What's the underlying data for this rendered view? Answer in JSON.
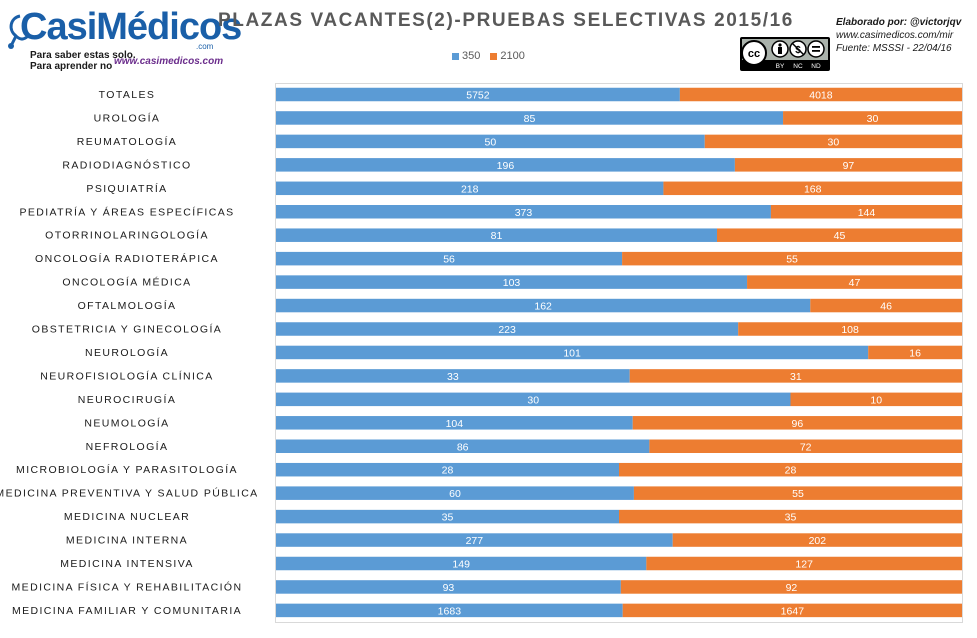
{
  "logo": {
    "word": "CasiMédicos",
    "com": ".com",
    "tagline1": "Para saber estas solo.",
    "tagline2": "Para aprender no",
    "url": "www.casimedicos.com"
  },
  "credits": {
    "line1": "Elaborado por: @victorjqv",
    "line2": "www.casimedicos.com/mir",
    "line3": "Fuente: MSSSI - 22/04/16"
  },
  "license": {
    "by": "BY",
    "nc": "NC",
    "nd": "ND"
  },
  "colors": {
    "series1": "#5b9bd5",
    "series2": "#ed7d31"
  },
  "chart_data": {
    "type": "bar",
    "orientation": "horizontal",
    "stacking": "percent",
    "title": "PLAZAS VACANTES(2)-PRUEBAS SELECTIVAS 2015/16",
    "legend_position": "top",
    "grid": false,
    "categories": [
      "TOTALES",
      "UROLOGÍA",
      "REUMATOLOGÍA",
      "RADIODIAGNÓSTICO",
      "PSIQUIATRÍA",
      "PEDIATRÍA Y ÁREAS ESPECÍFICAS",
      "OTORRINOLARINGOLOGÍA",
      "ONCOLOGÍA RADIOTERÁPICA",
      "ONCOLOGÍA MÉDICA",
      "OFTALMOLOGÍA",
      "OBSTETRICIA Y GINECOLOGÍA",
      "NEUROLOGÍA",
      "NEUROFISIOLOGÍA CLÍNICA",
      "NEUROCIRUGÍA",
      "NEUMOLOGÍA",
      "NEFROLOGÍA",
      "MICROBIOLOGÍA Y PARASITOLOGÍA",
      "MEDICINA PREVENTIVA Y SALUD PÚBLICA",
      "MEDICINA NUCLEAR",
      "MEDICINA INTERNA",
      "MEDICINA INTENSIVA",
      "MEDICINA FÍSICA Y REHABILITACIÓN",
      "MEDICINA FAMILIAR Y COMUNITARIA"
    ],
    "series": [
      {
        "name": "350",
        "color": "#5b9bd5",
        "values": [
          5752,
          85,
          50,
          196,
          218,
          373,
          81,
          56,
          103,
          162,
          223,
          101,
          33,
          30,
          104,
          86,
          28,
          60,
          35,
          277,
          149,
          93,
          1683
        ]
      },
      {
        "name": "2100",
        "color": "#ed7d31",
        "values": [
          4018,
          30,
          30,
          97,
          168,
          144,
          45,
          55,
          47,
          46,
          108,
          16,
          31,
          10,
          96,
          72,
          28,
          55,
          35,
          202,
          127,
          92,
          1647
        ]
      }
    ]
  }
}
